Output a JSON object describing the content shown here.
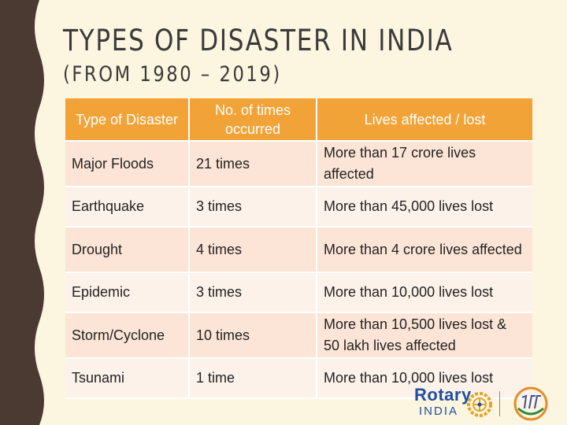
{
  "slide": {
    "title": "TYPES OF DISASTER IN INDIA",
    "subtitle": "(FROM 1980 – 2019)"
  },
  "table": {
    "headers": [
      "Type of Disaster",
      "No. of times occurred",
      "Lives affected / lost"
    ],
    "rows": [
      [
        "Major Floods",
        "21 times",
        "More than 17 crore lives affected"
      ],
      [
        "Earthquake",
        "3 times",
        "More than 45,000 lives lost"
      ],
      [
        "Drought",
        "4 times",
        "More than 4 crore lives affected"
      ],
      [
        "Epidemic",
        "3 times",
        "More than 10,000 lives lost"
      ],
      [
        "Storm/Cyclone",
        "10 times",
        "More than 10,500 lives lost & 50 lakh lives affected"
      ],
      [
        "Tsunami",
        "1 time",
        "More than 10,000 lives lost"
      ]
    ]
  },
  "logo": {
    "word": "Rotary",
    "country": "INDIA"
  },
  "colors": {
    "header_bg": "#f2a337",
    "row_odd": "#fce5d6",
    "row_even": "#fdf2ea",
    "slide_bg": "#fcf5e0",
    "edge": "#4a3a31"
  }
}
